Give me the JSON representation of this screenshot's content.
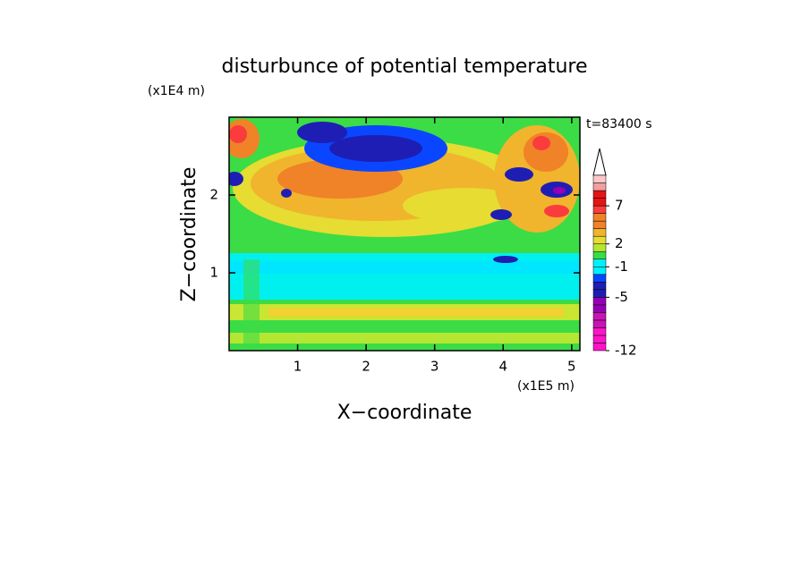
{
  "chart_data": {
    "type": "contour",
    "title": "disturbunce of potential temperature",
    "x_label": "X−coordinate",
    "y_label": "Z−coordinate",
    "x_unit": "(x1E5 m)",
    "y_unit": "(x1E4 m)",
    "annotation": "t=83400 s",
    "xlim": [
      0,
      5.12
    ],
    "xticks": [
      1,
      2,
      3,
      4,
      5
    ],
    "ylim": [
      0,
      3.0
    ],
    "yticks": [
      1,
      2
    ],
    "colorbar": {
      "levels": [
        -12,
        -11,
        -10,
        -9,
        -8,
        -7,
        -6,
        -5,
        -4,
        -3,
        -2,
        -1,
        0,
        1,
        2,
        3,
        4,
        5,
        6,
        7,
        8,
        9,
        10,
        11
      ],
      "ticks": [
        -12,
        -5,
        -1,
        2,
        7
      ],
      "colors": [
        "#ff14c8",
        "#ff14c8",
        "#ff14c8",
        "#c814b4",
        "#c814b4",
        "#9600b4",
        "#9600b4",
        "#1e1eb4",
        "#1e1eb4",
        "#0a46ff",
        "#00f0ff",
        "#00f0ff",
        "#3cdc46",
        "#b4e632",
        "#e6dc32",
        "#f0b42d",
        "#f08228",
        "#f08228",
        "#fa3c3c",
        "#e61414",
        "#e61414",
        "#f0a0a0",
        "#ffc8c8"
      ]
    }
  }
}
